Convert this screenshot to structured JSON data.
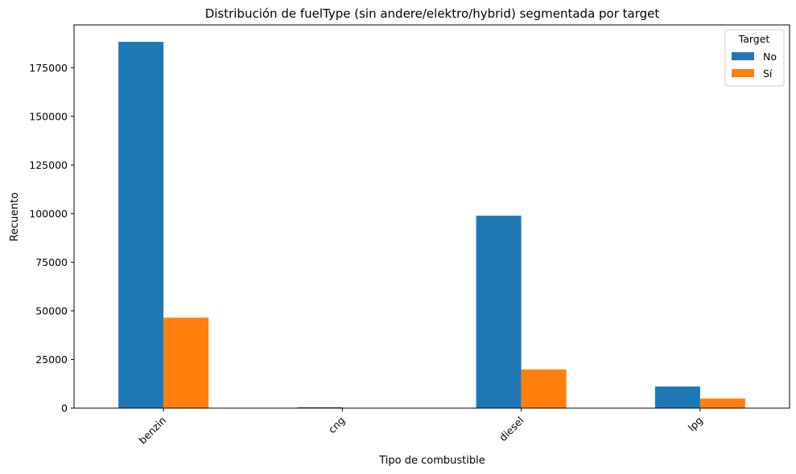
{
  "chart_data": {
    "type": "bar",
    "title": "Distribución de fuelType (sin andere/elektro/hybrid) segmentada por target",
    "xlabel": "Tipo de combustible",
    "ylabel": "Recuento",
    "categories": [
      "benzin",
      "cng",
      "diesel",
      "lpg"
    ],
    "series": [
      {
        "name": "No",
        "color": "#1f77b4",
        "values": [
          188300,
          450,
          98900,
          11100
        ]
      },
      {
        "name": "Sí",
        "color": "#ff7f0e",
        "values": [
          46500,
          60,
          19900,
          4900
        ]
      }
    ],
    "ylim": [
      0,
      197000
    ],
    "yticks": [
      0,
      25000,
      50000,
      75000,
      100000,
      125000,
      150000,
      175000
    ],
    "grid": false,
    "legend": {
      "title": "Target",
      "placement": "top-right"
    }
  }
}
